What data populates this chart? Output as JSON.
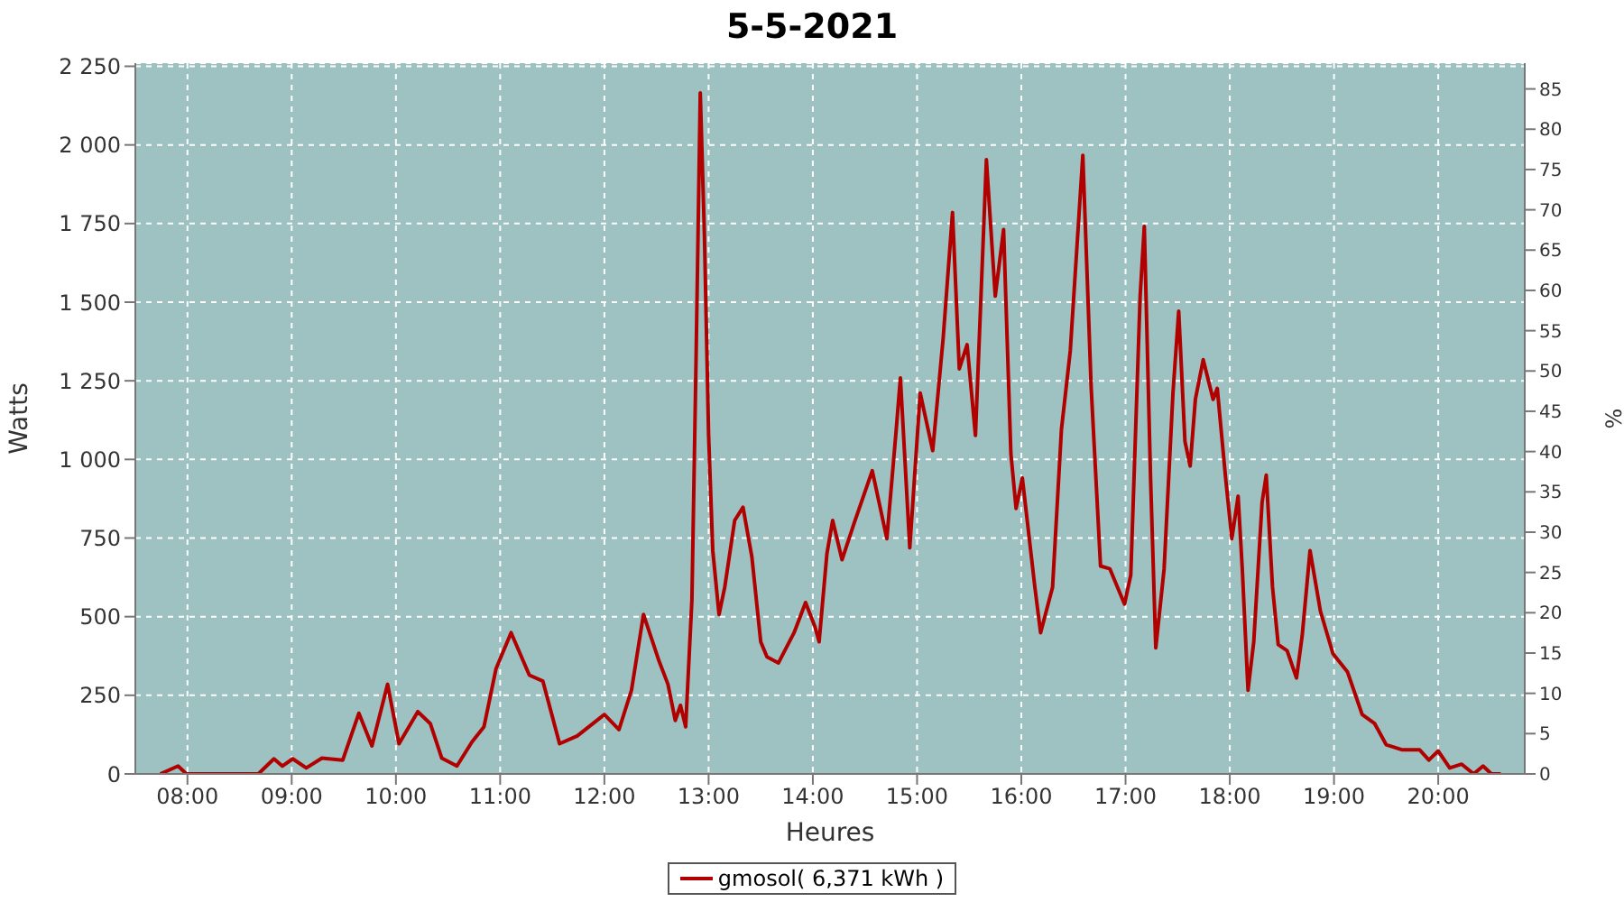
{
  "chart_data": {
    "type": "line",
    "title": "5-5-2021",
    "xlabel": "Heures",
    "ylabel": "Watts",
    "y2label": "%",
    "xlim": [
      7.5,
      20.83
    ],
    "xticks": [
      {
        "value": 8,
        "label": "08:00"
      },
      {
        "value": 9,
        "label": "09:00"
      },
      {
        "value": 10,
        "label": "10:00"
      },
      {
        "value": 11,
        "label": "11:00"
      },
      {
        "value": 12,
        "label": "12:00"
      },
      {
        "value": 13,
        "label": "13:00"
      },
      {
        "value": 14,
        "label": "14:00"
      },
      {
        "value": 15,
        "label": "15:00"
      },
      {
        "value": 16,
        "label": "16:00"
      },
      {
        "value": 17,
        "label": "17:00"
      },
      {
        "value": 18,
        "label": "18:00"
      },
      {
        "value": 19,
        "label": "19:00"
      },
      {
        "value": 20,
        "label": "20:00"
      }
    ],
    "ylim": [
      0,
      2260
    ],
    "yticks": [
      0,
      250,
      500,
      750,
      {
        "value": 1000,
        "label": "1 000"
      },
      {
        "value": 1250,
        "label": "1 250"
      },
      {
        "value": 1500,
        "label": "1 500"
      },
      {
        "value": 1750,
        "label": "1 750"
      },
      {
        "value": 2000,
        "label": "2 000"
      },
      {
        "value": 2250,
        "label": "2 250"
      }
    ],
    "y2lim": [
      0,
      88.2
    ],
    "y2ticks": [
      0,
      5,
      10,
      15,
      20,
      25,
      30,
      35,
      40,
      45,
      50,
      55,
      60,
      65,
      70,
      75,
      80,
      85
    ],
    "grid": true,
    "legend": "bottom",
    "x": [
      7.74,
      7.91,
      7.99,
      8.68,
      8.83,
      8.91,
      9.01,
      9.14,
      9.29,
      9.49,
      9.645,
      9.77,
      9.92,
      10.03,
      10.21,
      10.33,
      10.44,
      10.585,
      10.73,
      10.845,
      10.96,
      11.105,
      11.28,
      11.41,
      11.57,
      11.74,
      12.0,
      12.14,
      12.26,
      12.375,
      12.52,
      12.61,
      12.68,
      12.73,
      12.78,
      12.84,
      12.88,
      12.92,
      12.96,
      13.0,
      13.04,
      13.1,
      13.155,
      13.25,
      13.33,
      13.415,
      13.5,
      13.56,
      13.67,
      13.82,
      13.93,
      14.02,
      14.06,
      14.135,
      14.19,
      14.28,
      14.395,
      14.57,
      14.71,
      14.8,
      14.84,
      14.93,
      15.03,
      15.15,
      15.25,
      15.34,
      15.405,
      15.48,
      15.56,
      15.665,
      15.75,
      15.83,
      15.9,
      15.95,
      16.01,
      16.13,
      16.185,
      16.3,
      16.385,
      16.47,
      16.59,
      16.67,
      16.76,
      16.85,
      16.99,
      17.05,
      17.14,
      17.18,
      17.24,
      17.29,
      17.37,
      17.455,
      17.51,
      17.57,
      17.62,
      17.67,
      17.745,
      17.84,
      17.88,
      17.96,
      18.02,
      18.08,
      18.12,
      18.175,
      18.23,
      18.31,
      18.35,
      18.41,
      18.465,
      18.55,
      18.64,
      18.695,
      18.77,
      18.87,
      18.99,
      19.13,
      19.27,
      19.39,
      19.5,
      19.65,
      19.82,
      19.91,
      20.0,
      20.11,
      20.225,
      20.34,
      20.43,
      20.51,
      20.6
    ],
    "series": [
      {
        "name": "gmosol( 6,371 kWh )",
        "color": "#b00000",
        "values": [
          0,
          25,
          0,
          0,
          48,
          25,
          48,
          19,
          50,
          44,
          193,
          89,
          285,
          96,
          198,
          160,
          50,
          25,
          102,
          150,
          334,
          449,
          314,
          295,
          96,
          121,
          189,
          141,
          266,
          507,
          363,
          285,
          170,
          218,
          150,
          555,
          1326,
          2165,
          1712,
          1076,
          710,
          507,
          594,
          806,
          848,
          690,
          420,
          372,
          353,
          449,
          545,
          468,
          420,
          700,
          806,
          681,
          796,
          964,
          748,
          1095,
          1259,
          719,
          1211,
          1028,
          1384,
          1785,
          1288,
          1365,
          1076,
          1953,
          1519,
          1731,
          1018,
          844,
          941,
          594,
          449,
          594,
          1095,
          1346,
          1967,
          1230,
          661,
          652,
          540,
          632,
          1519,
          1741,
          941,
          401,
          652,
          1211,
          1471,
          1057,
          979,
          1191,
          1317,
          1191,
          1226,
          941,
          748,
          883,
          652,
          266,
          420,
          864,
          950,
          594,
          411,
          392,
          305,
          440,
          710,
          517,
          382,
          324,
          189,
          160,
          93,
          77,
          77,
          44,
          73,
          19,
          31,
          0,
          25,
          0,
          0
        ]
      }
    ]
  }
}
